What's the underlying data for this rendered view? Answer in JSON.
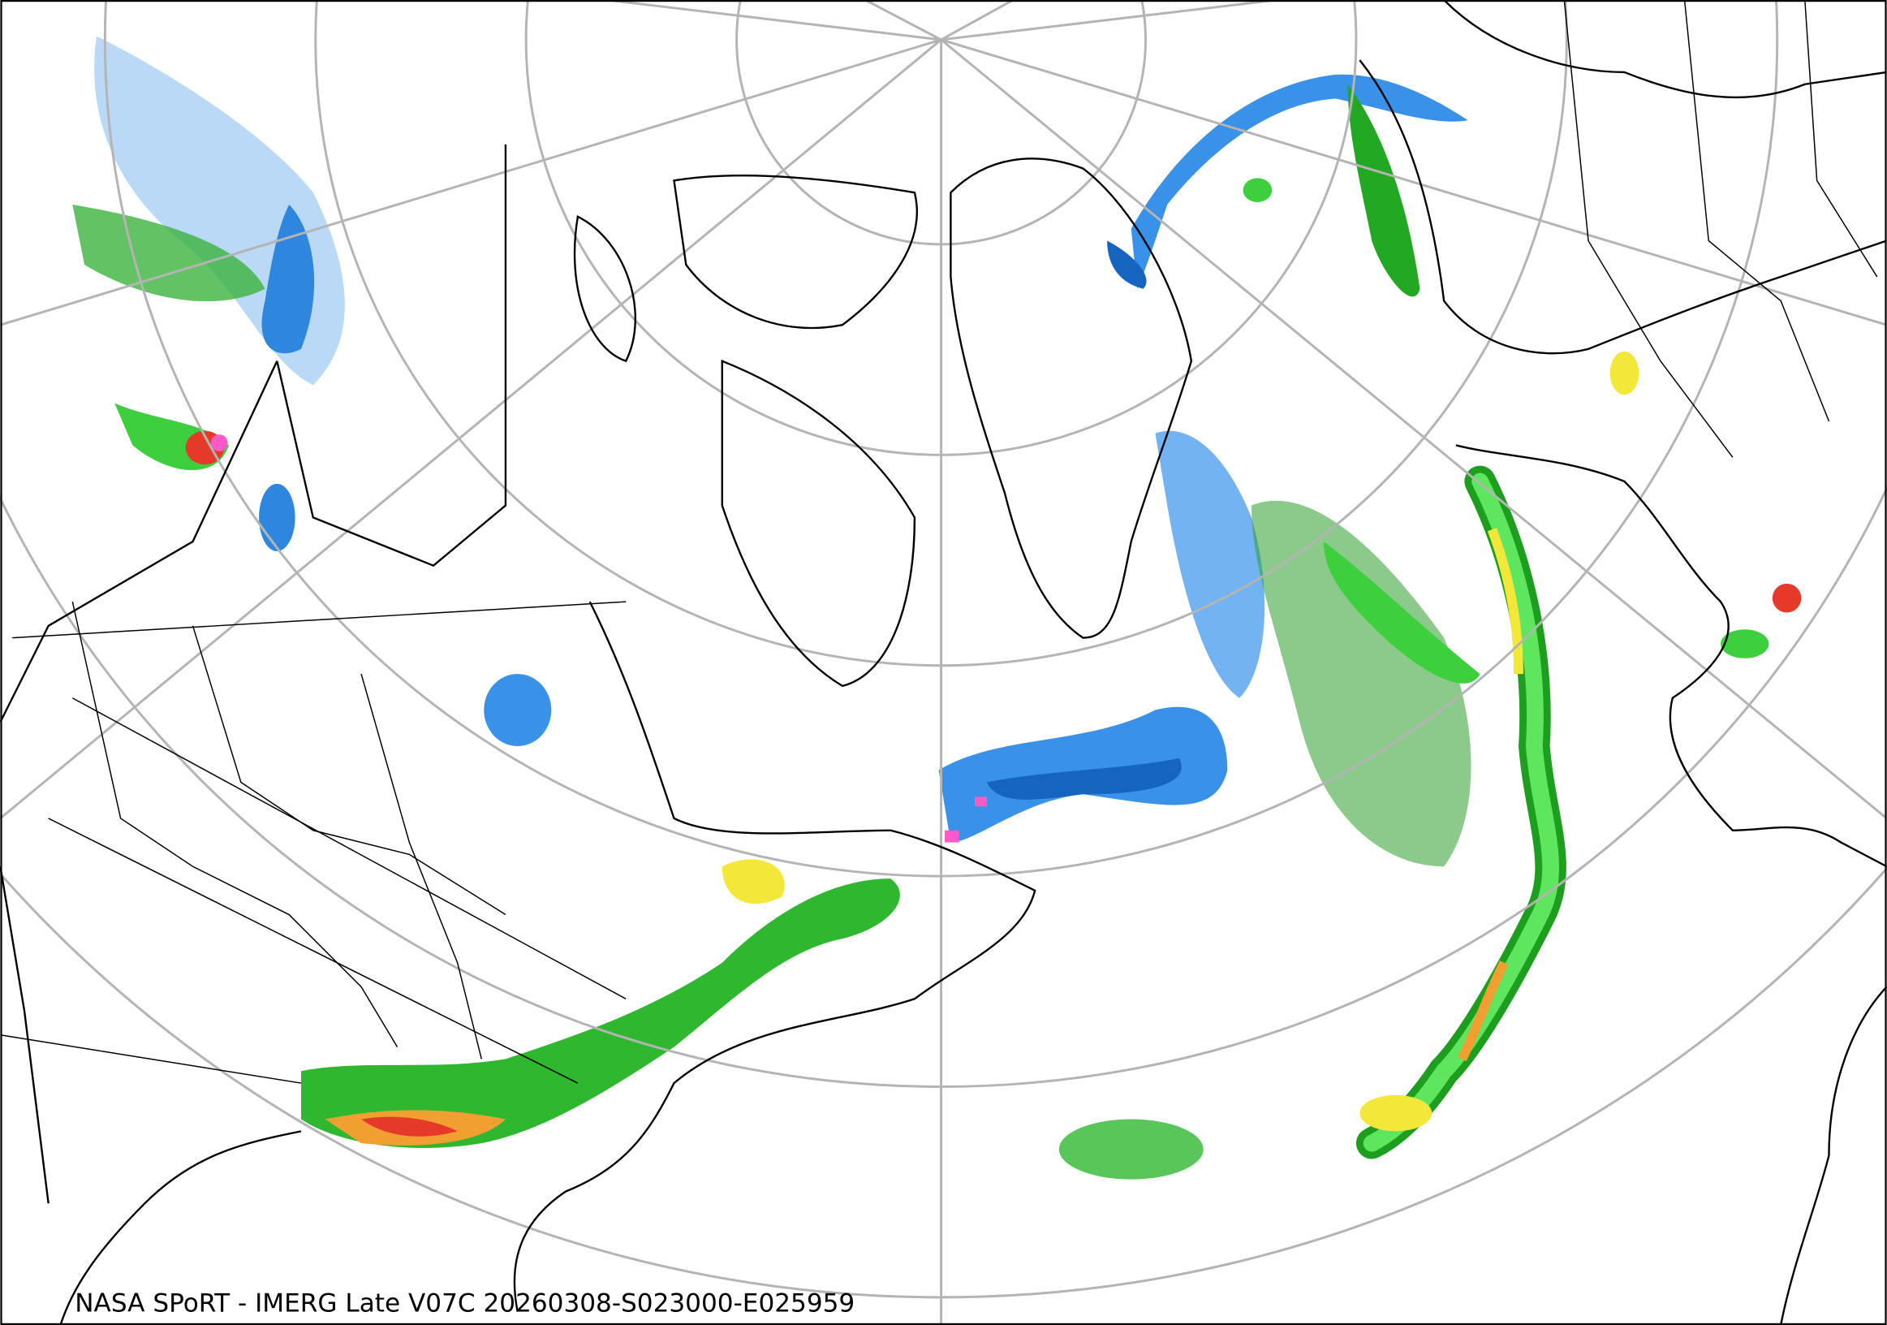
{
  "caption": "NASA SPoRT - IMERG Late V07C 20260308-S023000-E025959"
}
